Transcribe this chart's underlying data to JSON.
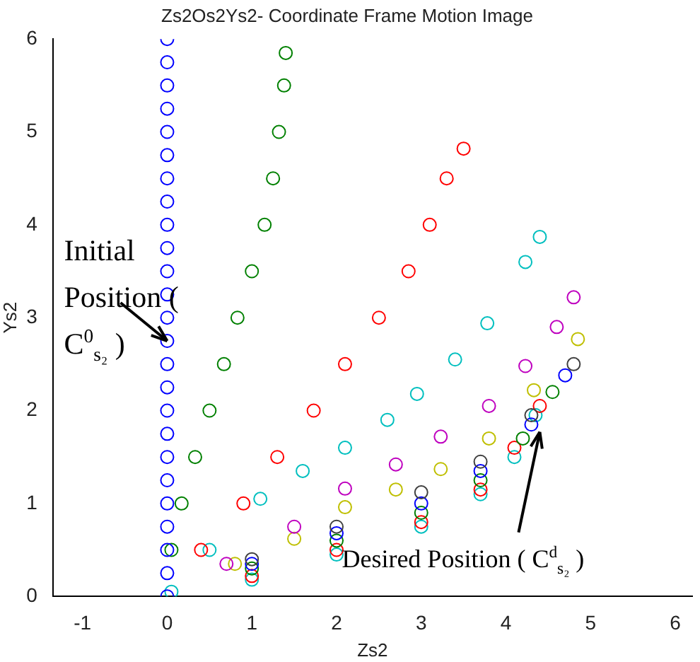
{
  "chart_data": {
    "type": "scatter",
    "title": "Zs2Os2Ys2- Coordinate Frame Motion Image",
    "xlabel": "Zs2",
    "ylabel": "Ys2",
    "marker": "circle",
    "grid": false,
    "xlim": [
      -1.35,
      6.2
    ],
    "ylim": [
      0,
      6
    ],
    "xticks": [
      -1,
      0,
      1,
      2,
      3,
      4,
      5,
      6
    ],
    "yticks": [
      0,
      1,
      2,
      3,
      4,
      5,
      6
    ],
    "annotations": [
      {
        "text": "Initial Position ( C$^{0}$$_{s₂}$ )",
        "x": 0,
        "y": 2.75
      },
      {
        "text": "Desired Position ( C$^{d}$$_{s₂}$ )",
        "x": 4.4,
        "y": 1.77
      }
    ],
    "series": [
      {
        "color": "#0000ff",
        "x": [
          0,
          0,
          0,
          0,
          0,
          0,
          0,
          0,
          0,
          0,
          0,
          0,
          0,
          0,
          0,
          0,
          0,
          0,
          0,
          0,
          0,
          0,
          0,
          0,
          0
        ],
        "values": [
          0,
          0.25,
          0.5,
          0.75,
          1,
          1.25,
          1.5,
          1.75,
          2,
          2.25,
          2.5,
          2.75,
          3,
          3.25,
          3.5,
          3.75,
          4,
          4.25,
          4.5,
          4.75,
          5,
          5.25,
          5.5,
          5.75,
          6
        ]
      },
      {
        "color": "#008000",
        "x": [
          0.05,
          0.17,
          0.33,
          0.5,
          0.67,
          0.83,
          1.0,
          1.15,
          1.25,
          1.32,
          1.38,
          1.4
        ],
        "values": [
          0.5,
          1,
          1.5,
          2,
          2.5,
          3,
          3.5,
          4,
          4.5,
          5,
          5.5,
          5.85
        ]
      },
      {
        "color": "#ff0000",
        "x": [
          0.4,
          0.9,
          1.3,
          1.73,
          2.1,
          2.5,
          2.85,
          3.1,
          3.3,
          3.5
        ],
        "values": [
          0.5,
          1,
          1.5,
          2,
          2.5,
          3,
          3.5,
          4,
          4.5,
          4.82
        ]
      },
      {
        "color": "#00bfbf",
        "x": [
          0.5,
          1.1,
          1.6,
          2.1,
          2.6,
          2.95,
          3.4,
          3.78,
          4.23,
          4.4
        ],
        "values": [
          0.5,
          1.05,
          1.35,
          1.6,
          1.9,
          2.18,
          2.55,
          2.94,
          3.6,
          3.87
        ]
      },
      {
        "color": "#bf00bf",
        "x": [
          0.7,
          1.5,
          2.1,
          2.7,
          3.23,
          3.8,
          4.23,
          4.6,
          4.8
        ],
        "values": [
          0.35,
          0.75,
          1.16,
          1.42,
          1.72,
          2.05,
          2.48,
          2.9,
          3.22
        ]
      },
      {
        "color": "#bfbf00",
        "x": [
          0.8,
          1.5,
          2.1,
          2.7,
          3.23,
          3.8,
          4.33,
          4.85
        ],
        "values": [
          0.35,
          0.62,
          0.96,
          1.15,
          1.37,
          1.7,
          2.22,
          2.77
        ]
      },
      {
        "color": "#404040",
        "x": [
          1,
          2,
          3,
          3.7,
          4.3,
          4.8
        ],
        "values": [
          0.4,
          0.75,
          1.12,
          1.45,
          1.95,
          2.5
        ]
      },
      {
        "color": "#0000ff",
        "x": [
          1,
          2,
          3,
          3.7,
          4.3,
          4.7
        ],
        "values": [
          0.35,
          0.68,
          1.0,
          1.35,
          1.85,
          2.38
        ]
      },
      {
        "color": "#008000",
        "x": [
          1,
          2,
          3,
          3.7,
          4.2,
          4.55
        ],
        "values": [
          0.3,
          0.6,
          0.9,
          1.25,
          1.7,
          2.2
        ]
      },
      {
        "color": "#ff0000",
        "x": [
          1,
          2,
          3,
          3.7,
          4.1,
          4.4
        ],
        "values": [
          0.22,
          0.5,
          0.8,
          1.15,
          1.6,
          2.05
        ]
      },
      {
        "color": "#00bfbf",
        "x": [
          0.05,
          1,
          2,
          3,
          3.7,
          4.1,
          4.35
        ],
        "values": [
          0.05,
          0.18,
          0.45,
          0.75,
          1.1,
          1.5,
          1.95
        ]
      }
    ]
  }
}
